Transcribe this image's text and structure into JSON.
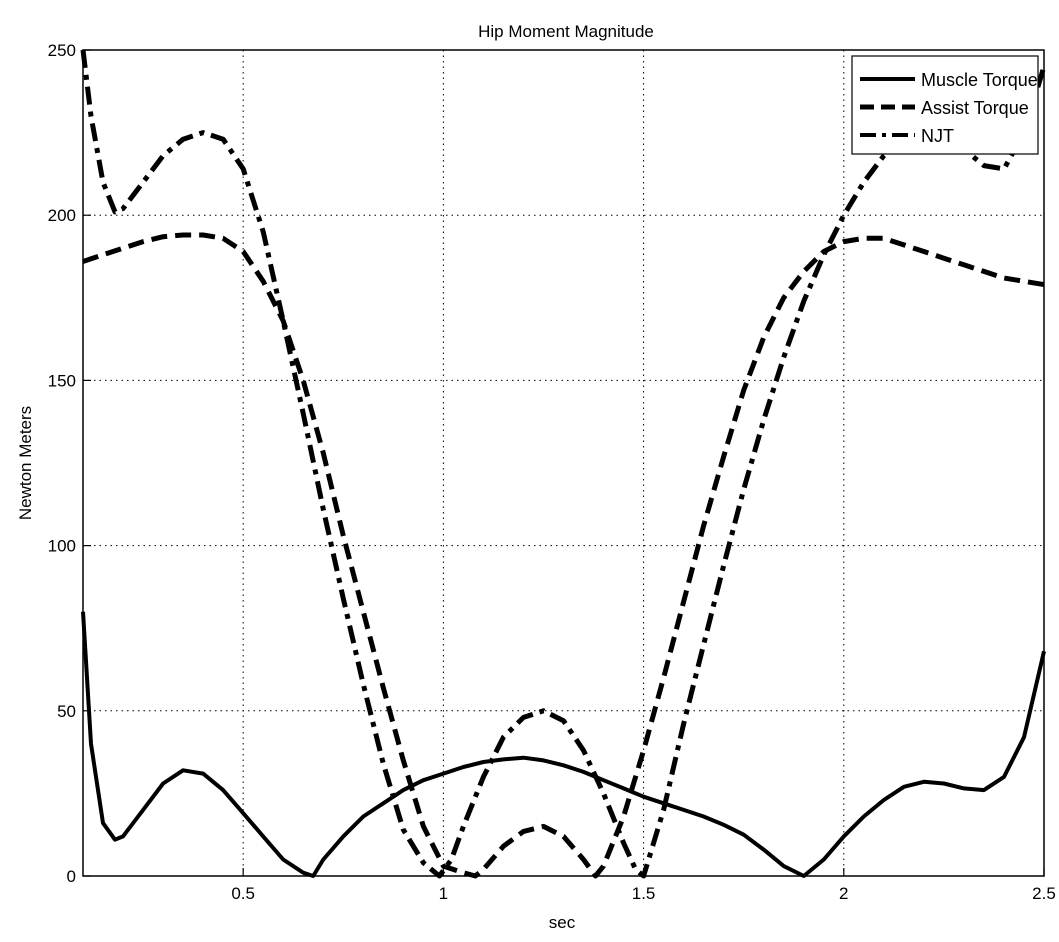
{
  "chart_data": {
    "type": "line",
    "title": "Hip Moment Magnitude",
    "xlabel": "sec",
    "ylabel": "Newton Meters",
    "xlim": [
      0.1,
      2.5
    ],
    "ylim": [
      0,
      250
    ],
    "xticks": [
      0.5,
      1,
      1.5,
      2,
      2.5
    ],
    "xtick_labels": [
      "0.5",
      "1",
      "1.5",
      "2",
      "2.5"
    ],
    "yticks": [
      0,
      50,
      100,
      150,
      200,
      250
    ],
    "ytick_labels": [
      "0",
      "50",
      "100",
      "150",
      "200",
      "250"
    ],
    "grid": true,
    "legend_position": "top-right",
    "series": [
      {
        "name": "Muscle Torque",
        "style": "solid",
        "color": "#000000",
        "x": [
          0.1,
          0.12,
          0.15,
          0.18,
          0.2,
          0.25,
          0.3,
          0.35,
          0.4,
          0.45,
          0.5,
          0.55,
          0.6,
          0.65,
          0.675,
          0.7,
          0.75,
          0.8,
          0.85,
          0.9,
          0.95,
          1.0,
          1.05,
          1.1,
          1.15,
          1.2,
          1.25,
          1.3,
          1.35,
          1.4,
          1.45,
          1.5,
          1.55,
          1.6,
          1.65,
          1.7,
          1.75,
          1.8,
          1.85,
          1.9,
          1.95,
          2.0,
          2.05,
          2.1,
          2.15,
          2.2,
          2.25,
          2.3,
          2.35,
          2.4,
          2.45,
          2.5
        ],
        "values": [
          80,
          40,
          16,
          11,
          12,
          20,
          28,
          32,
          31,
          26,
          19,
          12,
          5,
          1,
          0,
          5,
          12,
          18,
          22,
          26,
          29,
          31,
          33,
          34.5,
          35.3,
          35.8,
          35,
          33.5,
          31.5,
          29,
          26.5,
          24,
          22,
          20,
          18,
          15.5,
          12.5,
          8,
          3,
          0,
          5,
          12,
          18,
          23,
          27,
          28.5,
          28,
          26.5,
          26,
          30,
          42,
          68
        ]
      },
      {
        "name": "Assist Torque",
        "style": "dashed",
        "color": "#000000",
        "x": [
          0.1,
          0.15,
          0.2,
          0.25,
          0.3,
          0.35,
          0.4,
          0.45,
          0.5,
          0.55,
          0.6,
          0.65,
          0.7,
          0.75,
          0.8,
          0.85,
          0.9,
          0.95,
          1.0,
          1.05,
          1.08,
          1.1,
          1.15,
          1.2,
          1.25,
          1.3,
          1.35,
          1.38,
          1.4,
          1.45,
          1.5,
          1.55,
          1.6,
          1.65,
          1.7,
          1.75,
          1.8,
          1.85,
          1.9,
          1.95,
          2.0,
          2.05,
          2.1,
          2.15,
          2.2,
          2.25,
          2.3,
          2.35,
          2.4,
          2.45,
          2.5
        ],
        "values": [
          186,
          188,
          190,
          192,
          193.5,
          194,
          194,
          193,
          189,
          180,
          168,
          150,
          128,
          103,
          80,
          57,
          35,
          15,
          3,
          1,
          0,
          2,
          9,
          13.5,
          15,
          12,
          5,
          0,
          3,
          18,
          38,
          60,
          83,
          106,
          127,
          147,
          163,
          175,
          183,
          189,
          192,
          193,
          193,
          191,
          189,
          187,
          185,
          183,
          181,
          180,
          179
        ]
      },
      {
        "name": "NJT",
        "style": "dashdot",
        "color": "#000000",
        "x": [
          0.1,
          0.12,
          0.15,
          0.18,
          0.2,
          0.25,
          0.3,
          0.35,
          0.4,
          0.45,
          0.5,
          0.55,
          0.6,
          0.65,
          0.7,
          0.75,
          0.8,
          0.85,
          0.9,
          0.95,
          0.99,
          1.02,
          1.05,
          1.1,
          1.15,
          1.2,
          1.25,
          1.3,
          1.35,
          1.4,
          1.45,
          1.48,
          1.5,
          1.55,
          1.6,
          1.65,
          1.7,
          1.75,
          1.8,
          1.85,
          1.9,
          1.95,
          2.0,
          2.05,
          2.1,
          2.15,
          2.2,
          2.25,
          2.3,
          2.35,
          2.4,
          2.45,
          2.5
        ],
        "values": [
          250,
          230,
          210,
          201,
          202,
          210,
          218,
          223,
          225,
          223,
          214,
          195,
          168,
          140,
          111,
          84,
          58,
          34,
          14,
          4,
          0,
          5,
          15,
          30,
          42,
          48,
          50,
          47,
          38,
          25,
          10,
          2,
          0,
          20,
          46,
          70,
          94,
          117,
          138,
          157,
          174,
          188,
          200,
          210,
          218,
          224,
          226,
          224,
          220,
          215,
          214,
          225,
          245
        ]
      }
    ]
  }
}
